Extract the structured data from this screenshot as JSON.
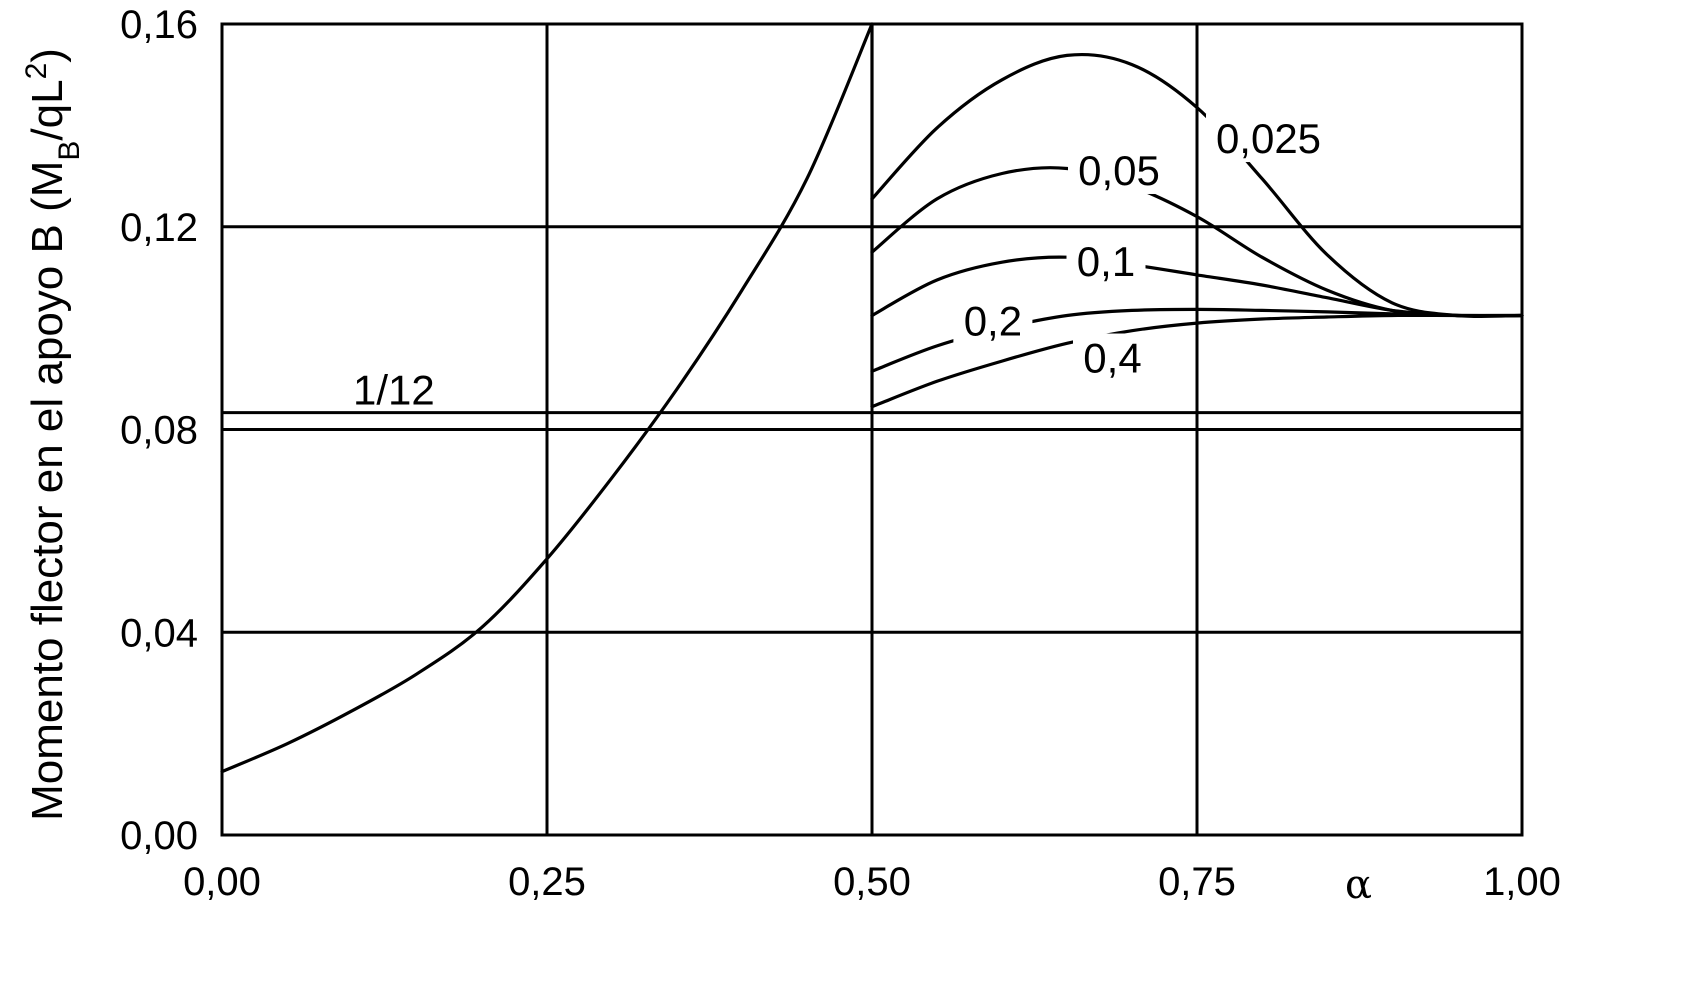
{
  "chart_data": {
    "type": "line",
    "xlabel": "α",
    "ylabel": {
      "main": "Momento flector en el apoyo B (M",
      "sub": "B",
      "mid": "/qL",
      "sup": "2",
      "end": ")"
    },
    "xlim": [
      0,
      1
    ],
    "ylim": [
      0,
      0.16
    ],
    "grid": true,
    "x_ticks": [
      {
        "value": 0.0,
        "label": "0,00"
      },
      {
        "value": 0.25,
        "label": "0,25"
      },
      {
        "value": 0.5,
        "label": "0,50"
      },
      {
        "value": 0.75,
        "label": "0,75"
      },
      {
        "value": 1.0,
        "label": "1,00"
      }
    ],
    "y_ticks": [
      {
        "value": 0.0,
        "label": "0,00"
      },
      {
        "value": 0.04,
        "label": "0,04"
      },
      {
        "value": 0.08,
        "label": "0,08"
      },
      {
        "value": 0.12,
        "label": "0,12"
      },
      {
        "value": 0.16,
        "label": "0,16"
      }
    ],
    "reference_line": {
      "value": 0.08333,
      "label": "1/12"
    },
    "series": [
      {
        "label": "",
        "x": [
          0.0,
          0.05,
          0.1,
          0.15,
          0.2,
          0.25,
          0.3,
          0.35,
          0.4,
          0.45,
          0.5
        ],
        "y": [
          0.0125,
          0.018,
          0.0245,
          0.0318,
          0.041,
          0.0545,
          0.0705,
          0.088,
          0.1075,
          0.1295,
          0.16
        ]
      },
      {
        "label": "0,025",
        "x": [
          0.5,
          0.55,
          0.6,
          0.65,
          0.7,
          0.75,
          0.8,
          0.85,
          0.9,
          0.95,
          1.0
        ],
        "y": [
          0.1255,
          0.1395,
          0.149,
          0.1538,
          0.152,
          0.1435,
          0.1295,
          0.1145,
          0.105,
          0.1025,
          0.1025
        ]
      },
      {
        "label": "0,05",
        "x": [
          0.5,
          0.55,
          0.6,
          0.65,
          0.7,
          0.75,
          0.8,
          0.85,
          0.9,
          0.95,
          1.0
        ],
        "y": [
          0.115,
          0.1255,
          0.1305,
          0.1315,
          0.128,
          0.122,
          0.114,
          0.1075,
          0.1035,
          0.1025,
          0.1025
        ]
      },
      {
        "label": "0,1",
        "x": [
          0.5,
          0.55,
          0.6,
          0.65,
          0.7,
          0.75,
          0.8,
          0.85,
          0.9,
          0.95,
          1.0
        ],
        "y": [
          0.1025,
          0.1095,
          0.113,
          0.114,
          0.1125,
          0.1105,
          0.1085,
          0.106,
          0.1035,
          0.1025,
          0.1025
        ]
      },
      {
        "label": "0,2",
        "x": [
          0.5,
          0.55,
          0.6,
          0.65,
          0.7,
          0.75,
          0.8,
          0.85,
          0.9,
          0.95,
          1.0
        ],
        "y": [
          0.0915,
          0.0965,
          0.1,
          0.1025,
          0.1035,
          0.1037,
          0.1035,
          0.1032,
          0.1028,
          0.1025,
          0.1025
        ]
      },
      {
        "label": "0,4",
        "x": [
          0.5,
          0.55,
          0.6,
          0.65,
          0.7,
          0.75,
          0.8,
          0.85,
          0.9,
          0.95,
          1.0
        ],
        "y": [
          0.0845,
          0.0895,
          0.0935,
          0.097,
          0.0995,
          0.101,
          0.1018,
          0.1022,
          0.1025,
          0.1025,
          0.1025
        ]
      }
    ],
    "series_labels": [
      {
        "text": "0,025",
        "x": 0.805,
        "y": 0.1375
      },
      {
        "text": "0,05",
        "x": 0.69,
        "y": 0.1312
      },
      {
        "text": "0,1",
        "x": 0.68,
        "y": 0.1132
      },
      {
        "text": "0,2",
        "x": 0.593,
        "y": 0.1015
      },
      {
        "text": "0,4",
        "x": 0.685,
        "y": 0.0942
      }
    ]
  }
}
